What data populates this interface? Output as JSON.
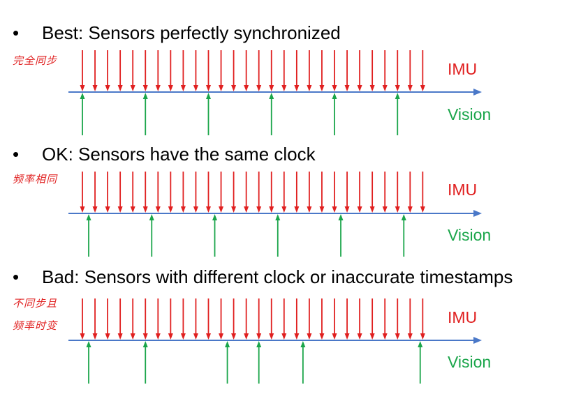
{
  "colors": {
    "imu": "#e02020",
    "vision": "#1aa54a",
    "axis": "#4a78c8",
    "text": "#000000"
  },
  "bullet_glyph": "•",
  "sections": [
    {
      "title": "Best: Sensors perfectly synchronized",
      "notes": [
        "完全同步"
      ],
      "imu_label": "IMU",
      "vision_label": "Vision",
      "imu_ticks": 28,
      "vision_ticks": [
        0,
        5,
        10,
        15,
        20,
        25
      ]
    },
    {
      "title": "OK: Sensors have the same clock",
      "notes": [
        "频率相同"
      ],
      "imu_label": "IMU",
      "vision_label": "Vision",
      "imu_ticks": 28,
      "vision_ticks": [
        0.5,
        5.5,
        10.5,
        15.5,
        20.5,
        25.5
      ]
    },
    {
      "title": "Bad: Sensors with different clock or inaccurate timestamps",
      "notes": [
        "不同步且",
        "频率时变"
      ],
      "imu_label": "IMU",
      "vision_label": "Vision",
      "imu_ticks": 28,
      "vision_ticks": [
        0.5,
        5,
        11.5,
        14,
        17.5,
        26.8
      ]
    }
  ]
}
